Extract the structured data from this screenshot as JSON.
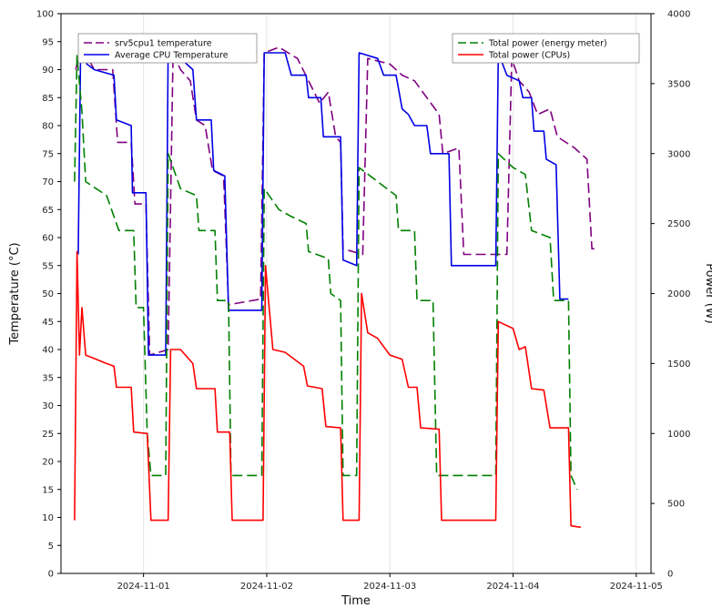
{
  "chart_data": {
    "type": "line",
    "xlabel": "Time",
    "ylabel_left": "Temperature (°C)",
    "ylabel_right": "Power (W)",
    "x_ticks": [
      "2024-11-01",
      "2024-11-02",
      "2024-11-03",
      "2024-11-04",
      "2024-11-05"
    ],
    "x_tick_values": [
      1.0,
      2.0,
      3.0,
      4.0,
      5.0
    ],
    "xlim": [
      0.33,
      5.12
    ],
    "ylim_left": [
      0,
      100
    ],
    "ylim_right": [
      0,
      4000
    ],
    "y_ticks_left": [
      0,
      5,
      10,
      15,
      20,
      25,
      30,
      35,
      40,
      45,
      50,
      55,
      60,
      65,
      70,
      75,
      80,
      85,
      90,
      95,
      100
    ],
    "y_ticks_right": [
      0,
      500,
      1000,
      1500,
      2000,
      2500,
      3000,
      3500,
      4000
    ],
    "grid": "vertical",
    "legends": [
      {
        "position": "top-left",
        "entries": [
          "srv5cpu1 temperature",
          "Average CPU Temperature"
        ]
      },
      {
        "position": "top-right",
        "entries": [
          "Total power (energy meter)",
          "Total power (CPUs)"
        ]
      }
    ],
    "series": [
      {
        "name": "srv5cpu1 temperature",
        "axis": "left",
        "color": "#800080",
        "dash": "long",
        "points": [
          [
            0.45,
            90
          ],
          [
            0.48,
            93
          ],
          [
            0.55,
            92
          ],
          [
            0.6,
            90
          ],
          [
            0.75,
            90
          ],
          [
            0.79,
            77
          ],
          [
            0.9,
            77
          ],
          [
            0.93,
            66
          ],
          [
            1.02,
            66
          ],
          [
            1.05,
            39
          ],
          [
            1.2,
            40
          ],
          [
            1.24,
            93
          ],
          [
            1.3,
            90
          ],
          [
            1.38,
            88
          ],
          [
            1.43,
            81
          ],
          [
            1.5,
            80
          ],
          [
            1.56,
            72
          ],
          [
            1.65,
            71
          ],
          [
            1.69,
            48
          ],
          [
            1.95,
            49
          ],
          [
            1.98,
            93
          ],
          [
            2.1,
            94
          ],
          [
            2.25,
            92
          ],
          [
            2.34,
            88
          ],
          [
            2.43,
            84
          ],
          [
            2.5,
            86
          ],
          [
            2.56,
            78
          ],
          [
            2.6,
            77
          ],
          [
            2.62,
            58
          ],
          [
            2.78,
            57
          ],
          [
            2.82,
            92
          ],
          [
            3.0,
            91
          ],
          [
            3.1,
            89
          ],
          [
            3.2,
            88
          ],
          [
            3.3,
            85
          ],
          [
            3.4,
            82
          ],
          [
            3.43,
            75
          ],
          [
            3.56,
            76
          ],
          [
            3.6,
            57
          ],
          [
            3.95,
            57
          ],
          [
            3.99,
            92
          ],
          [
            4.05,
            88
          ],
          [
            4.13,
            86
          ],
          [
            4.2,
            82
          ],
          [
            4.3,
            83
          ],
          [
            4.36,
            78
          ],
          [
            4.5,
            76
          ],
          [
            4.55,
            75
          ],
          [
            4.6,
            74
          ],
          [
            4.64,
            58
          ],
          [
            4.69,
            58
          ]
        ]
      },
      {
        "name": "Average CPU Temperature",
        "axis": "left",
        "color": "#0000e6",
        "dash": "solid",
        "points": [
          [
            0.47,
            57
          ],
          [
            0.49,
            94
          ],
          [
            0.52,
            94
          ],
          [
            0.54,
            91
          ],
          [
            0.6,
            90
          ],
          [
            0.76,
            89
          ],
          [
            0.78,
            81
          ],
          [
            0.9,
            80
          ],
          [
            0.91,
            68
          ],
          [
            1.02,
            68
          ],
          [
            1.04,
            39
          ],
          [
            1.18,
            39
          ],
          [
            1.2,
            94
          ],
          [
            1.3,
            92
          ],
          [
            1.4,
            90
          ],
          [
            1.43,
            81
          ],
          [
            1.55,
            81
          ],
          [
            1.57,
            72
          ],
          [
            1.66,
            71
          ],
          [
            1.69,
            47
          ],
          [
            1.96,
            47
          ],
          [
            1.98,
            93
          ],
          [
            2.15,
            93
          ],
          [
            2.2,
            89
          ],
          [
            2.32,
            89
          ],
          [
            2.34,
            85
          ],
          [
            2.44,
            85
          ],
          [
            2.46,
            78
          ],
          [
            2.6,
            78
          ],
          [
            2.62,
            56
          ],
          [
            2.73,
            55
          ],
          [
            2.75,
            93
          ],
          [
            2.9,
            92
          ],
          [
            2.95,
            89
          ],
          [
            3.05,
            89
          ],
          [
            3.1,
            83
          ],
          [
            3.15,
            82
          ],
          [
            3.2,
            80
          ],
          [
            3.3,
            80
          ],
          [
            3.33,
            75
          ],
          [
            3.48,
            75
          ],
          [
            3.5,
            55
          ],
          [
            3.86,
            55
          ],
          [
            3.88,
            93
          ],
          [
            3.95,
            89
          ],
          [
            4.05,
            88
          ],
          [
            4.08,
            85
          ],
          [
            4.15,
            85
          ],
          [
            4.17,
            79
          ],
          [
            4.25,
            79
          ],
          [
            4.27,
            74
          ],
          [
            4.35,
            73
          ],
          [
            4.38,
            49
          ],
          [
            4.45,
            49
          ]
        ]
      },
      {
        "name": "Total power (energy meter)",
        "axis": "right",
        "color": "#008000",
        "dash": "long",
        "points": [
          [
            0.44,
            2800
          ],
          [
            0.46,
            3700
          ],
          [
            0.5,
            3300
          ],
          [
            0.53,
            2800
          ],
          [
            0.7,
            2700
          ],
          [
            0.8,
            2450
          ],
          [
            0.92,
            2450
          ],
          [
            0.94,
            1900
          ],
          [
            1.0,
            1900
          ],
          [
            1.03,
            1000
          ],
          [
            1.06,
            700
          ],
          [
            1.18,
            700
          ],
          [
            1.2,
            3000
          ],
          [
            1.3,
            2750
          ],
          [
            1.43,
            2700
          ],
          [
            1.45,
            2450
          ],
          [
            1.58,
            2450
          ],
          [
            1.6,
            1950
          ],
          [
            1.69,
            1950
          ],
          [
            1.71,
            700
          ],
          [
            1.96,
            700
          ],
          [
            1.98,
            2750
          ],
          [
            2.1,
            2600
          ],
          [
            2.2,
            2550
          ],
          [
            2.32,
            2500
          ],
          [
            2.34,
            2300
          ],
          [
            2.5,
            2250
          ],
          [
            2.52,
            2000
          ],
          [
            2.6,
            1950
          ],
          [
            2.62,
            700
          ],
          [
            2.73,
            700
          ],
          [
            2.75,
            2900
          ],
          [
            2.9,
            2800
          ],
          [
            3.05,
            2700
          ],
          [
            3.07,
            2450
          ],
          [
            3.2,
            2450
          ],
          [
            3.22,
            1950
          ],
          [
            3.35,
            1950
          ],
          [
            3.38,
            700
          ],
          [
            3.86,
            700
          ],
          [
            3.88,
            3000
          ],
          [
            4.0,
            2900
          ],
          [
            4.1,
            2850
          ],
          [
            4.15,
            2450
          ],
          [
            4.3,
            2400
          ],
          [
            4.33,
            1950
          ],
          [
            4.45,
            1950
          ],
          [
            4.47,
            700
          ],
          [
            4.52,
            600
          ]
        ]
      },
      {
        "name": "Total power (CPUs)",
        "axis": "right",
        "color": "#ff0000",
        "dash": "solid",
        "points": [
          [
            0.44,
            380
          ],
          [
            0.46,
            2300
          ],
          [
            0.48,
            1560
          ],
          [
            0.5,
            1900
          ],
          [
            0.53,
            1560
          ],
          [
            0.7,
            1500
          ],
          [
            0.76,
            1480
          ],
          [
            0.78,
            1330
          ],
          [
            0.9,
            1330
          ],
          [
            0.92,
            1010
          ],
          [
            1.03,
            1000
          ],
          [
            1.06,
            380
          ],
          [
            1.2,
            380
          ],
          [
            1.22,
            1600
          ],
          [
            1.3,
            1600
          ],
          [
            1.4,
            1500
          ],
          [
            1.43,
            1320
          ],
          [
            1.58,
            1320
          ],
          [
            1.6,
            1010
          ],
          [
            1.7,
            1010
          ],
          [
            1.72,
            380
          ],
          [
            1.97,
            380
          ],
          [
            1.99,
            2200
          ],
          [
            2.05,
            1600
          ],
          [
            2.15,
            1580
          ],
          [
            2.3,
            1480
          ],
          [
            2.33,
            1340
          ],
          [
            2.45,
            1320
          ],
          [
            2.48,
            1050
          ],
          [
            2.6,
            1040
          ],
          [
            2.62,
            380
          ],
          [
            2.75,
            380
          ],
          [
            2.77,
            2000
          ],
          [
            2.82,
            1720
          ],
          [
            2.9,
            1680
          ],
          [
            3.0,
            1560
          ],
          [
            3.1,
            1530
          ],
          [
            3.15,
            1330
          ],
          [
            3.22,
            1330
          ],
          [
            3.25,
            1040
          ],
          [
            3.4,
            1030
          ],
          [
            3.42,
            380
          ],
          [
            3.86,
            380
          ],
          [
            3.88,
            1800
          ],
          [
            4.0,
            1750
          ],
          [
            4.05,
            1600
          ],
          [
            4.1,
            1620
          ],
          [
            4.15,
            1320
          ],
          [
            4.25,
            1310
          ],
          [
            4.3,
            1040
          ],
          [
            4.45,
            1040
          ],
          [
            4.47,
            340
          ],
          [
            4.55,
            330
          ]
        ]
      }
    ]
  }
}
